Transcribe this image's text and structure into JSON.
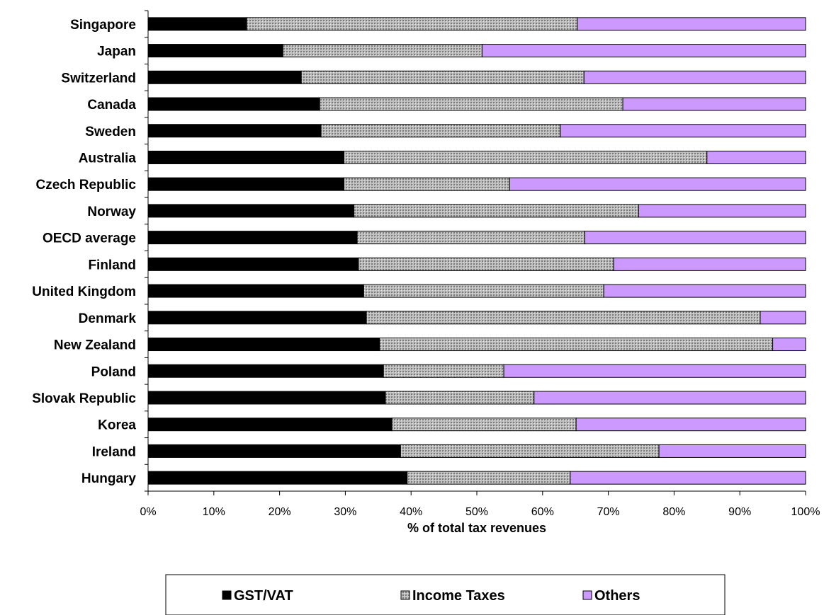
{
  "chart_data": {
    "type": "bar",
    "orientation": "horizontal",
    "stacked": true,
    "categories": [
      "Singapore",
      "Japan",
      "Switzerland",
      "Canada",
      "Sweden",
      "Australia",
      "Czech Republic",
      "Norway",
      "OECD average",
      "Finland",
      "United Kingdom",
      "Denmark",
      "New Zealand",
      "Poland",
      "Slovak Republic",
      "Korea",
      "Ireland",
      "Hungary"
    ],
    "series": [
      {
        "name": "GST/VAT",
        "color": "#000000",
        "pattern": "solid",
        "values": [
          15.0,
          20.5,
          23.3,
          26.1,
          26.3,
          29.8,
          29.8,
          31.3,
          31.8,
          32.0,
          32.8,
          33.2,
          35.2,
          35.8,
          36.1,
          37.1,
          38.4,
          39.4
        ]
      },
      {
        "name": "Income Taxes",
        "color": "#bbbbbb",
        "pattern": "dotted",
        "values": [
          50.3,
          30.3,
          43.0,
          46.1,
          36.4,
          55.2,
          25.2,
          43.3,
          34.6,
          38.8,
          36.5,
          59.9,
          59.8,
          18.3,
          22.6,
          28.0,
          39.3,
          24.8
        ]
      },
      {
        "name": "Others",
        "color": "#cc99ff",
        "pattern": "solid",
        "values": [
          34.7,
          49.2,
          33.7,
          27.8,
          37.3,
          15.0,
          45.0,
          25.4,
          33.6,
          29.2,
          30.7,
          6.9,
          5.0,
          45.9,
          41.3,
          34.9,
          22.3,
          35.8
        ]
      }
    ],
    "x_ticks": [
      "0%",
      "10%",
      "20%",
      "30%",
      "40%",
      "50%",
      "60%",
      "70%",
      "80%",
      "90%",
      "100%"
    ],
    "xlim": [
      0,
      100
    ],
    "xlabel": "% of total tax revenues",
    "ylabel": "",
    "title": "",
    "grid": false,
    "legend_position": "bottom"
  }
}
